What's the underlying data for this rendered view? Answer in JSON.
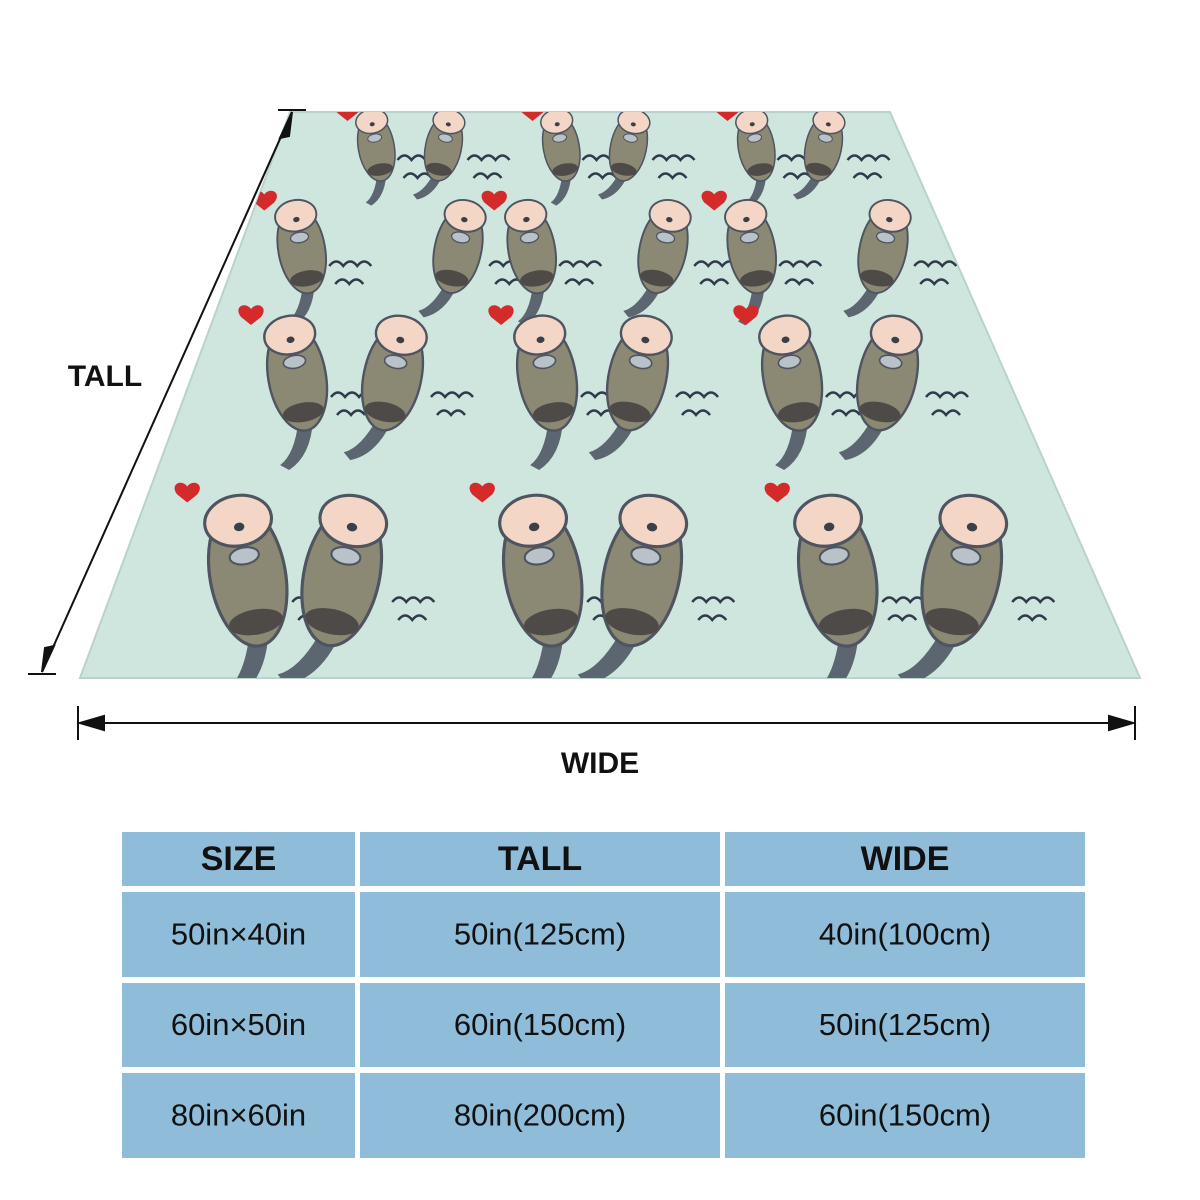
{
  "dimensions": {
    "tall": "TALL",
    "wide": "WIDE"
  },
  "table": {
    "header": [
      "SIZE",
      "TALL",
      "WIDE"
    ],
    "rows": [
      [
        "50in×40in",
        "50in(125cm)",
        "40in(100cm)"
      ],
      [
        "60in×50in",
        "60in(150cm)",
        "50in(125cm)"
      ],
      [
        "80in×60in",
        "80in(200cm)",
        "60in(150cm)"
      ]
    ]
  }
}
